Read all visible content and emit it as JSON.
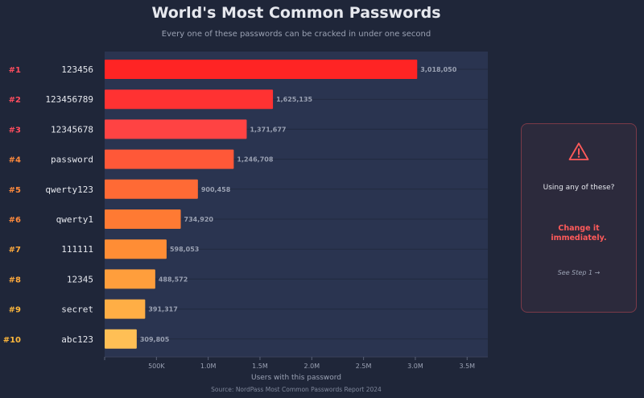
{
  "chart_data": {
    "type": "bar",
    "orientation": "horizontal",
    "title": "World's Most Common Passwords",
    "subtitle": "Every one of these passwords can be cracked in under one second",
    "xlabel": "Users with this password",
    "source": "Source: NordPass Most Common Passwords Report 2024",
    "ranks": [
      "#1",
      "#2",
      "#3",
      "#4",
      "#5",
      "#6",
      "#7",
      "#8",
      "#9",
      "#10"
    ],
    "categories": [
      "123456",
      "123456789",
      "12345678",
      "password",
      "qwerty123",
      "qwerty1",
      "111111",
      "12345",
      "secret",
      "abc123"
    ],
    "values": [
      3018050,
      1625135,
      1371677,
      1246708,
      900458,
      734920,
      598053,
      488572,
      391317,
      309805
    ],
    "value_labels": [
      "3,018,050",
      "1,625,135",
      "1,371,677",
      "1,246,708",
      "900,458",
      "734,920",
      "598,053",
      "488,572",
      "391,317",
      "309,805"
    ],
    "xlim": [
      0,
      3700000
    ],
    "xticks": [
      500000,
      1000000,
      1500000,
      2000000,
      2500000,
      3000000,
      3500000
    ],
    "xtick_labels": [
      "500K",
      "1.0M",
      "1.5M",
      "2.0M",
      "2.5M",
      "3.0M",
      "3.5M"
    ],
    "grid": "horizontal",
    "colors": [
      "#ff2424",
      "#ff3232",
      "#ff4343",
      "#ff5838",
      "#ff6a35",
      "#ff7a33",
      "#ff8d35",
      "#ff9e3c",
      "#ffae45",
      "#ffbf55"
    ],
    "rank_colors": [
      "#ff4d5e",
      "#ff4d5e",
      "#ff4d5e",
      "#ff8a3c",
      "#ff8a3c",
      "#ff8a3c",
      "#ffaa3c",
      "#ffaa3c",
      "#ffb83c",
      "#ffb83c"
    ]
  },
  "callout": {
    "icon": "warning-icon",
    "line1": "Using any of these?",
    "line2": "Change it immediately.",
    "link": "See Step 1 →"
  },
  "colors": {
    "background": "#1f2639",
    "plot_background": "#2a3450",
    "accent_red": "#ff5a5a",
    "card_border": "#7a3a48"
  }
}
